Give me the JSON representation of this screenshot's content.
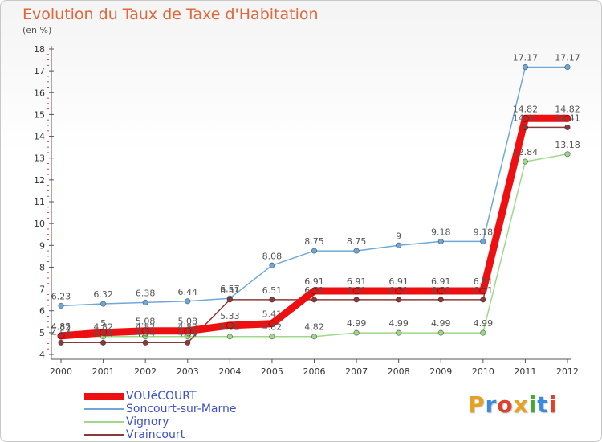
{
  "header": {
    "title": "Evolution du Taux de Taxe d'Habitation",
    "subtitle": "(en %)"
  },
  "logo": {
    "text": "Proxiti",
    "letters": [
      {
        "ch": "P",
        "color": "#e8a020"
      },
      {
        "ch": "r",
        "color": "#3c8ae0"
      },
      {
        "ch": "o",
        "color": "#e0402a"
      },
      {
        "ch": "x",
        "color": "#e8a020"
      },
      {
        "ch": "i",
        "color": "#4aa830"
      },
      {
        "ch": "t",
        "color": "#3c8ae0"
      },
      {
        "ch": "i",
        "color": "#e0402a"
      }
    ]
  },
  "chart_data": {
    "type": "line",
    "title": "Evolution du Taux de Taxe d'Habitation",
    "subtitle": "(en %)",
    "categories": [
      "2000",
      "2001",
      "2002",
      "2003",
      "2004",
      "2005",
      "2006",
      "2007",
      "2008",
      "2009",
      "2010",
      "2011",
      "2012"
    ],
    "yticks": [
      "4",
      "5",
      "6",
      "7",
      "8",
      "9",
      "10",
      "11",
      "12",
      "13",
      "14",
      "15",
      "16",
      "17",
      "18"
    ],
    "ylim": [
      4,
      18
    ],
    "grid": false,
    "legend_position": "bottom-left",
    "series": [
      {
        "name": "Soncourt-sur-Marne",
        "color": "#6fa8d8",
        "values": [
          6.23,
          6.32,
          6.38,
          6.44,
          6.57,
          8.08,
          8.75,
          8.75,
          9,
          9.18,
          9.18,
          17.17,
          17.17
        ],
        "labels": [
          "6.23",
          "6.32",
          "6.38",
          "6.44",
          "6.57",
          "8.08",
          "8.75",
          "8.75",
          "9",
          "9.18",
          "9.18",
          "17.17",
          "17.17"
        ]
      },
      {
        "name": "Vignory",
        "color": "#9ed88a",
        "values": [
          4.82,
          4.82,
          4.82,
          4.82,
          4.82,
          4.82,
          4.82,
          4.99,
          4.99,
          4.99,
          4.99,
          12.84,
          13.18
        ],
        "labels": [
          "4.82",
          "4.82",
          "4.82",
          "4.82",
          "4.82",
          "4.82",
          "4.82",
          "4.99",
          "4.99",
          "4.99",
          "4.99",
          "12.84",
          "13.18"
        ]
      },
      {
        "name": "Vraincourt",
        "color": "#8b3a3a",
        "values": [
          4.54,
          4.54,
          4.54,
          4.54,
          6.51,
          6.51,
          6.51,
          6.51,
          6.51,
          6.51,
          6.51,
          14.41,
          14.41
        ],
        "labels": [
          "4.54",
          "4.54",
          "4.54",
          "4.54",
          "6.51",
          "6.51",
          "6.51",
          "6.51",
          "6.51",
          "6.51",
          "6.51",
          "14.41",
          "14.41"
        ]
      },
      {
        "name": "VOUéCOURT",
        "color": "#ee1010",
        "values": [
          4.85,
          5,
          5.08,
          5.08,
          5.33,
          5.41,
          6.91,
          6.91,
          6.91,
          6.91,
          6.91,
          14.82,
          14.82
        ],
        "labels": [
          "4.85",
          "5",
          "5.08",
          "5.08",
          "5.33",
          "5.41",
          "6.91",
          "6.91",
          "6.91",
          "6.91",
          "6.91",
          "14.82",
          "14.82"
        ]
      }
    ],
    "legend": [
      {
        "name": "VOUéCOURT",
        "color": "#ee1010",
        "thickness": 9
      },
      {
        "name": "Soncourt-sur-Marne",
        "color": "#6fa8d8",
        "thickness": 2
      },
      {
        "name": "Vignory",
        "color": "#9ed88a",
        "thickness": 2
      },
      {
        "name": "Vraincourt",
        "color": "#8b3a3a",
        "thickness": 2
      }
    ]
  }
}
